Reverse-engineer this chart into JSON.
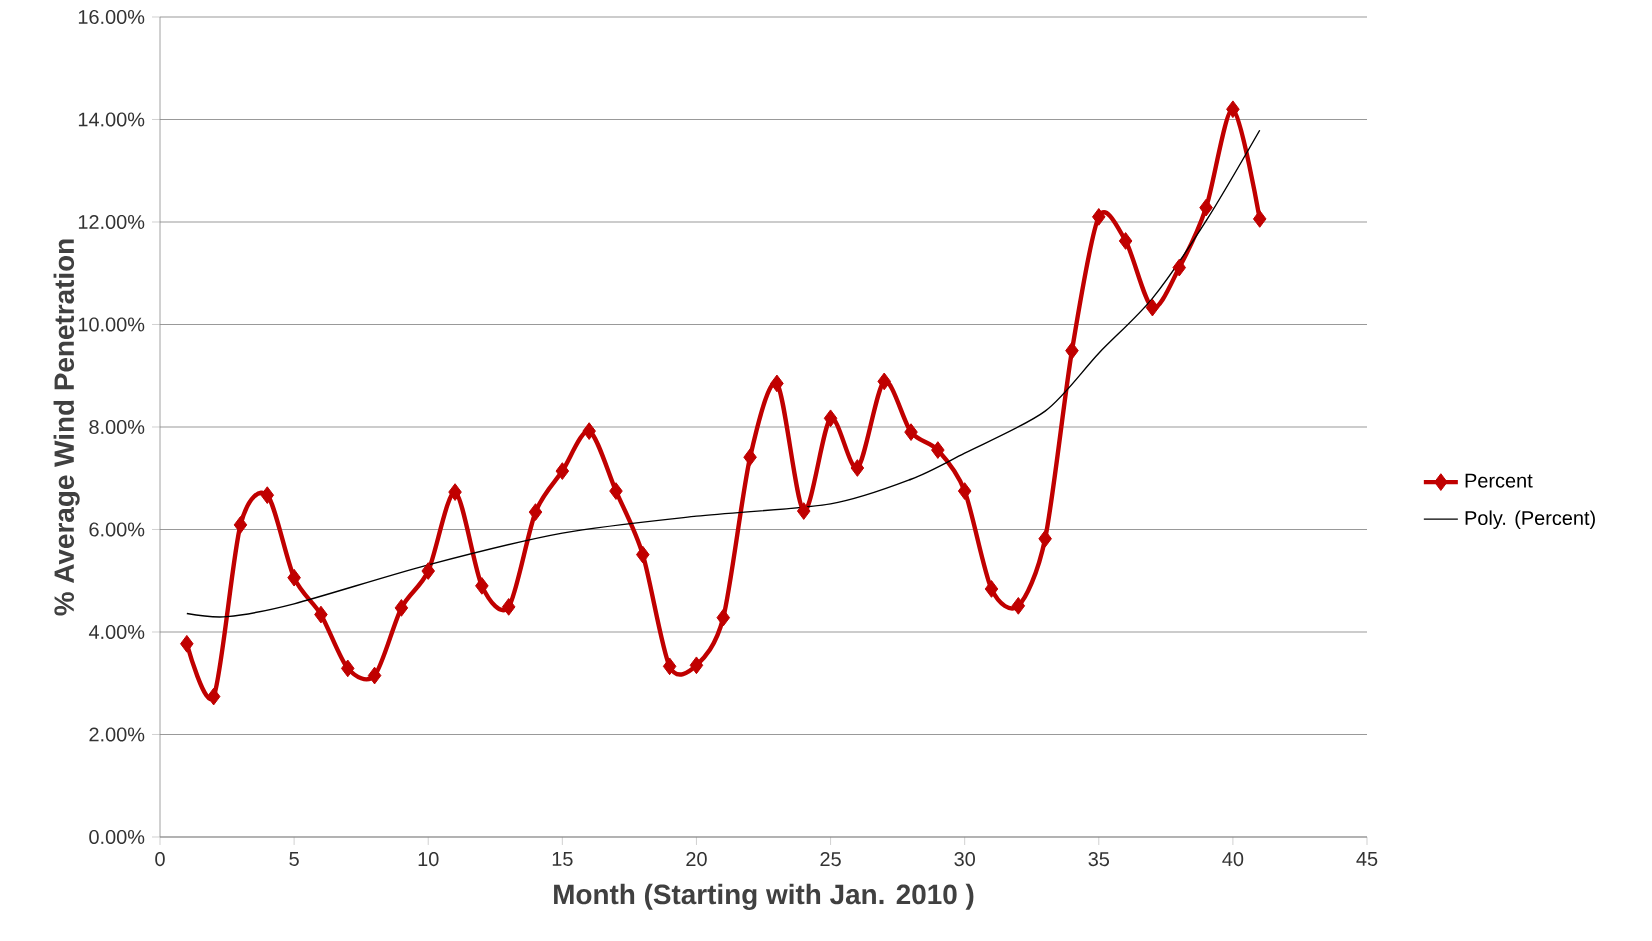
{
  "chart_data": {
    "type": "line",
    "xlabel": "Month   (Starting with Jan. 2010 )",
    "ylabel": "% Average Wind Penetration",
    "xlim": [
      0,
      45
    ],
    "xticks": [
      0,
      5,
      10,
      15,
      20,
      25,
      30,
      35,
      40,
      45
    ],
    "ylim": [
      0,
      16
    ],
    "yticks": [
      {
        "value": 0,
        "label": "0.00%"
      },
      {
        "value": 2,
        "label": "2.00%"
      },
      {
        "value": 4,
        "label": "4.00%"
      },
      {
        "value": 6,
        "label": "6.00%"
      },
      {
        "value": 8,
        "label": "8.00%"
      },
      {
        "value": 10,
        "label": "10.00%"
      },
      {
        "value": 12,
        "label": "12.00%"
      },
      {
        "value": 14,
        "label": "14.00%"
      },
      {
        "value": 16,
        "label": "16.00%"
      }
    ],
    "grid": "y",
    "legend": "right",
    "series": [
      {
        "name": "Percent",
        "color": "#c00000",
        "marker": "diamond",
        "line_style": "solid",
        "x": [
          1,
          2,
          3,
          4,
          5,
          6,
          7,
          8,
          9,
          10,
          11,
          12,
          13,
          14,
          15,
          16,
          17,
          18,
          19,
          20,
          21,
          22,
          23,
          24,
          25,
          26,
          27,
          28,
          29,
          30,
          31,
          32,
          33,
          34,
          35,
          36,
          37,
          38,
          39,
          40,
          41
        ],
        "values": [
          3.77,
          2.74,
          6.09,
          6.67,
          5.06,
          4.34,
          3.29,
          3.15,
          4.47,
          5.19,
          6.73,
          4.9,
          4.49,
          6.34,
          7.14,
          7.92,
          6.75,
          5.51,
          3.33,
          3.35,
          4.28,
          7.41,
          8.85,
          6.36,
          8.17,
          7.2,
          8.89,
          7.9,
          7.55,
          6.75,
          4.84,
          4.51,
          5.82,
          9.49,
          12.1,
          11.63,
          10.33,
          11.11,
          12.28,
          14.2,
          12.06
        ]
      },
      {
        "name": "Poly. (Percent)",
        "color": "#000000",
        "marker": "none",
        "line_style": "solid",
        "x": [
          1,
          2.5,
          5,
          10,
          15,
          20,
          25,
          28,
          30,
          33,
          35,
          37,
          39,
          41
        ],
        "values": [
          4.36,
          4.3,
          4.55,
          5.31,
          5.93,
          6.26,
          6.5,
          6.98,
          7.49,
          8.31,
          9.44,
          10.51,
          12.02,
          13.79
        ]
      }
    ]
  }
}
